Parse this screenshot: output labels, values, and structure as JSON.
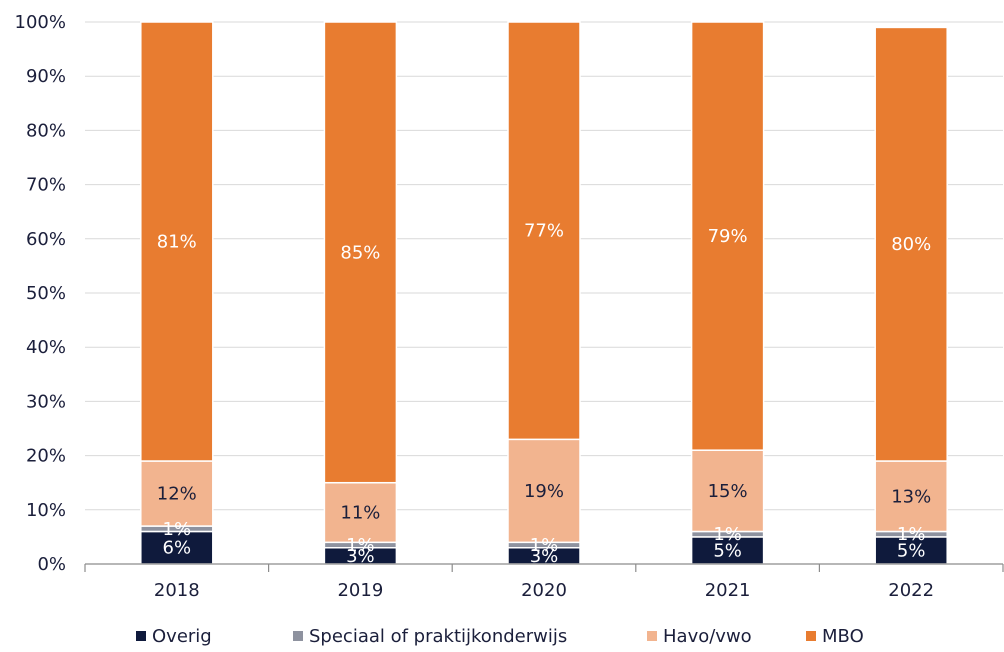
{
  "chart_data": {
    "type": "bar",
    "stacked": true,
    "percent": true,
    "categories": [
      "2018",
      "2019",
      "2020",
      "2021",
      "2022"
    ],
    "series": [
      {
        "name": "Overig",
        "color": "#0f1a3c",
        "values": [
          6,
          3,
          3,
          5,
          5
        ],
        "labels": [
          "6%",
          "3%",
          "3%",
          "5%",
          "5%"
        ]
      },
      {
        "name": "Speciaal of praktijkonderwijs",
        "color": "#8e929f",
        "values": [
          1,
          1,
          1,
          1,
          1
        ],
        "labels": [
          "1%",
          "1%",
          "1%",
          "1%",
          "1%"
        ]
      },
      {
        "name": "Havo/vwo",
        "color": "#f2b48f",
        "values": [
          12,
          11,
          19,
          15,
          13
        ],
        "labels": [
          "12%",
          "11%",
          "19%",
          "15%",
          "13%"
        ]
      },
      {
        "name": "MBO",
        "color": "#e87c30",
        "values": [
          81,
          85,
          77,
          79,
          80
        ],
        "labels": [
          "81%",
          "85%",
          "77%",
          "79%",
          "80%"
        ]
      }
    ],
    "y_ticks": [
      "0%",
      "10%",
      "20%",
      "30%",
      "40%",
      "50%",
      "60%",
      "70%",
      "80%",
      "90%",
      "100%"
    ],
    "ylim": [
      0,
      100
    ],
    "grid": true,
    "legend": "bottom"
  }
}
